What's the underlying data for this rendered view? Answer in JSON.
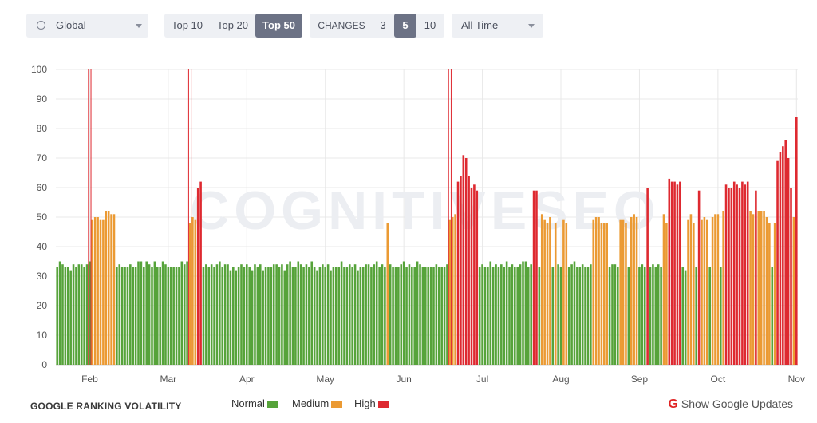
{
  "toolbar": {
    "region": {
      "label": "Global",
      "icon": "globe-icon"
    },
    "top_options": [
      {
        "label": "Top 10",
        "active": false
      },
      {
        "label": "Top 20",
        "active": false
      },
      {
        "label": "Top 50",
        "active": true
      }
    ],
    "changes": {
      "label": "CHANGES",
      "options": [
        {
          "label": "3",
          "active": false
        },
        {
          "label": "5",
          "active": true
        },
        {
          "label": "10",
          "active": false
        }
      ]
    },
    "period": {
      "label": "All Time"
    }
  },
  "colors": {
    "normal": "#56a33a",
    "medium": "#eb9a33",
    "high": "#de2930",
    "grid": "#e8e8e8",
    "axis_text": "#555555",
    "active_button": "#6c7285"
  },
  "watermark": "COGNITIVESEO",
  "chart_data": {
    "type": "bar",
    "title": "",
    "xlabel": "",
    "ylabel": "",
    "ylim": [
      0,
      100
    ],
    "yticks": [
      0,
      10,
      20,
      30,
      40,
      50,
      60,
      70,
      80,
      90,
      100
    ],
    "x_ticks": [
      "Feb",
      "Mar",
      "Apr",
      "May",
      "Jun",
      "Jul",
      "Aug",
      "Sep",
      "Oct",
      "Nov"
    ],
    "grid": true,
    "legend": {
      "position": "bottom",
      "title": "GOOGLE RANKING VOLATILITY",
      "entries": [
        "Normal",
        "Medium",
        "High"
      ]
    },
    "thresholds": {
      "normal_max": 40,
      "medium_max": 55
    },
    "series": [
      {
        "values": [
          33,
          35,
          34,
          33,
          33,
          32,
          34,
          33,
          34,
          34,
          33,
          34,
          35,
          49,
          50,
          50,
          49,
          49,
          52,
          52,
          51,
          51,
          33,
          34,
          33,
          33,
          33,
          34,
          33,
          33,
          35,
          35,
          33,
          35,
          34,
          33,
          35,
          33,
          33,
          35,
          34,
          33,
          33,
          33,
          33,
          33,
          35,
          34,
          35,
          48,
          50,
          49,
          60,
          62,
          33,
          34,
          33,
          34,
          33,
          34,
          35,
          33,
          34,
          34,
          32,
          33,
          32,
          33,
          34,
          33,
          34,
          33,
          32,
          34,
          33,
          34,
          32,
          33,
          33,
          33,
          34,
          34,
          33,
          34,
          32,
          34,
          35,
          33,
          33,
          35,
          34,
          33,
          34,
          33,
          35,
          33,
          32,
          33,
          34,
          33,
          34,
          32,
          33,
          33,
          33,
          35,
          33,
          33,
          34,
          33,
          34,
          32,
          33,
          33,
          34,
          34,
          33,
          34,
          35,
          33,
          34,
          33,
          48,
          34,
          33,
          33,
          33,
          34,
          35,
          33,
          34,
          33,
          33,
          35,
          34,
          33,
          33,
          33,
          33,
          33,
          34,
          33,
          33,
          33,
          34,
          49,
          50,
          51,
          62,
          64,
          71,
          70,
          64,
          60,
          61,
          59,
          33,
          34,
          33,
          33,
          35,
          33,
          34,
          33,
          34,
          33,
          35,
          33,
          34,
          33,
          33,
          34,
          35,
          35,
          33,
          34,
          59,
          59,
          33,
          51,
          49,
          48,
          50,
          33,
          48,
          34,
          33,
          49,
          48,
          33,
          34,
          35,
          33,
          33,
          34,
          33,
          33,
          34,
          49,
          50,
          50,
          48,
          48,
          48,
          33,
          34,
          34,
          33,
          49,
          49,
          48,
          33,
          50,
          51,
          50,
          33,
          34,
          33,
          60,
          33,
          34,
          33,
          34,
          33,
          51,
          48,
          63,
          62,
          62,
          61,
          62,
          33,
          32,
          49,
          51,
          48,
          33,
          59,
          49,
          50,
          49,
          33,
          50,
          51,
          51,
          33,
          52,
          61,
          60,
          60,
          62,
          61,
          60,
          62,
          61,
          62,
          52,
          51,
          59,
          52,
          52,
          52,
          50,
          48,
          33,
          48,
          69,
          72,
          74,
          76,
          70,
          60,
          50,
          84
        ]
      }
    ],
    "spikes": [
      {
        "x": 12,
        "value": 100
      },
      {
        "x": 49,
        "value": 100
      },
      {
        "x": 145,
        "value": 100
      }
    ]
  },
  "footer": {
    "title": "GOOGLE RANKING VOLATILITY",
    "legend": [
      {
        "label": "Normal",
        "color_key": "normal"
      },
      {
        "label": "Medium",
        "color_key": "medium"
      },
      {
        "label": "High",
        "color_key": "high"
      }
    ],
    "google_updates": {
      "icon": "google-g-icon",
      "label": "Show Google Updates"
    }
  }
}
